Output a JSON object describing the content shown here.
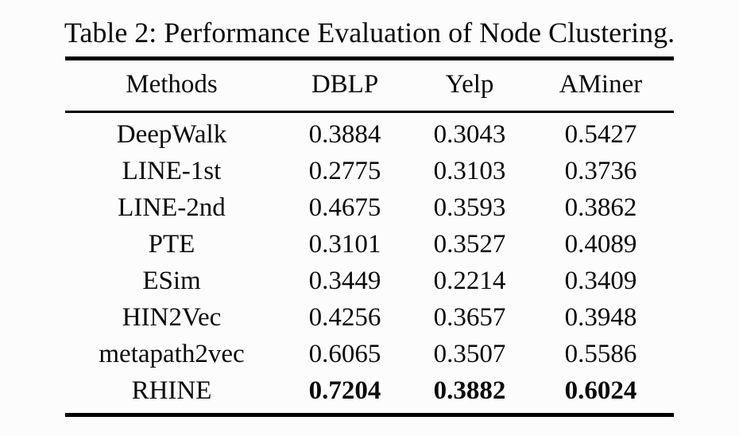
{
  "caption": "Table 2: Performance Evaluation of Node Clustering.",
  "colors": {
    "background": "#fcfcfc",
    "text": "#0a0a0a",
    "rule": "#000000"
  },
  "table": {
    "columns": [
      "Methods",
      "DBLP",
      "Yelp",
      "AMiner"
    ],
    "rows": [
      {
        "cells": [
          "DeepWalk",
          "0.3884",
          "0.3043",
          "0.5427"
        ],
        "bold": false
      },
      {
        "cells": [
          "LINE-1st",
          "0.2775",
          "0.3103",
          "0.3736"
        ],
        "bold": false
      },
      {
        "cells": [
          "LINE-2nd",
          "0.4675",
          "0.3593",
          "0.3862"
        ],
        "bold": false
      },
      {
        "cells": [
          "PTE",
          "0.3101",
          "0.3527",
          "0.4089"
        ],
        "bold": false
      },
      {
        "cells": [
          "ESim",
          "0.3449",
          "0.2214",
          "0.3409"
        ],
        "bold": false
      },
      {
        "cells": [
          "HIN2Vec",
          "0.4256",
          "0.3657",
          "0.3948"
        ],
        "bold": false
      },
      {
        "cells": [
          "metapath2vec",
          "0.6065",
          "0.3507",
          "0.5586"
        ],
        "bold": false
      },
      {
        "cells": [
          "RHINE",
          "0.7204",
          "0.3882",
          "0.6024"
        ],
        "bold": true
      }
    ]
  },
  "chart_data": {
    "type": "table",
    "title": "Table 2: Performance Evaluation of Node Clustering.",
    "categories": [
      "DBLP",
      "Yelp",
      "AMiner"
    ],
    "series": [
      {
        "name": "DeepWalk",
        "values": [
          0.3884,
          0.3043,
          0.5427
        ]
      },
      {
        "name": "LINE-1st",
        "values": [
          0.2775,
          0.3103,
          0.3736
        ]
      },
      {
        "name": "LINE-2nd",
        "values": [
          0.4675,
          0.3593,
          0.3862
        ]
      },
      {
        "name": "PTE",
        "values": [
          0.3101,
          0.3527,
          0.4089
        ]
      },
      {
        "name": "ESim",
        "values": [
          0.3449,
          0.2214,
          0.3409
        ]
      },
      {
        "name": "HIN2Vec",
        "values": [
          0.4256,
          0.3657,
          0.3948
        ]
      },
      {
        "name": "metapath2vec",
        "values": [
          0.6065,
          0.3507,
          0.5586
        ]
      },
      {
        "name": "RHINE",
        "values": [
          0.7204,
          0.3882,
          0.6024
        ]
      }
    ]
  }
}
